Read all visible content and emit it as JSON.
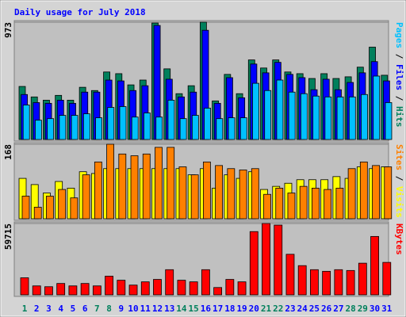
{
  "title": "Daily usage for July 2018",
  "categories": [
    "1",
    "2",
    "3",
    "4",
    "5",
    "6",
    "7",
    "8",
    "9",
    "10",
    "11",
    "12",
    "13",
    "14",
    "15",
    "16",
    "17",
    "18",
    "19",
    "20",
    "21",
    "22",
    "23",
    "24",
    "25",
    "26",
    "27",
    "28",
    "29",
    "30",
    "31"
  ],
  "category_colors": [
    "#00805c",
    "#0000ff",
    "#0000ff",
    "#0000ff",
    "#0000ff",
    "#0000ff",
    "#00805c",
    "#00805c",
    "#0000ff",
    "#0000ff",
    "#0000ff",
    "#0000ff",
    "#0000ff",
    "#00805c",
    "#00805c",
    "#0000ff",
    "#0000ff",
    "#0000ff",
    "#0000ff",
    "#0000ff",
    "#00805c",
    "#00805c",
    "#0000ff",
    "#0000ff",
    "#0000ff",
    "#0000ff",
    "#0000ff",
    "#00805c",
    "#00805c",
    "#0000ff",
    "#0000ff"
  ],
  "legend_separator": " / ",
  "chart_data": [
    {
      "type": "bar",
      "ylim": [
        0,
        973
      ],
      "yticks": [
        973
      ],
      "series": [
        {
          "name": "Hits",
          "color": "#00805c",
          "values": [
            440,
            353,
            326,
            366,
            326,
            433,
            406,
            560,
            546,
            453,
            493,
            966,
            586,
            380,
            446,
            973,
            320,
            540,
            380,
            660,
            593,
            660,
            560,
            546,
            506,
            546,
            506,
            520,
            600,
            766,
            533
          ]
        },
        {
          "name": "Files",
          "color": "#0000ff",
          "values": [
            373,
            306,
            300,
            326,
            300,
            393,
            393,
            493,
            486,
            406,
            446,
            946,
            500,
            353,
            393,
            906,
            300,
            513,
            346,
            626,
            553,
            640,
            540,
            513,
            413,
            500,
            413,
            473,
            553,
            646,
            486
          ]
        },
        {
          "name": "Pages",
          "color": "#00c0ff",
          "values": [
            286,
            160,
            173,
            200,
            200,
            213,
            180,
            266,
            273,
            186,
            220,
            186,
            326,
            173,
            200,
            260,
            173,
            180,
            180,
            466,
            406,
            493,
            393,
            380,
            360,
            353,
            353,
            353,
            373,
            526,
            306
          ]
        }
      ]
    },
    {
      "type": "bar",
      "ylim": [
        0,
        168
      ],
      "yticks": [
        168
      ],
      "series": [
        {
          "name": "Visits",
          "color": "#ffff00",
          "values": [
            91,
            77,
            58,
            84,
            69,
            106,
            102,
            113,
            113,
            113,
            113,
            113,
            113,
            113,
            99,
            113,
            69,
            99,
            91,
            106,
            66,
            73,
            80,
            88,
            88,
            88,
            95,
            91,
            117,
            113,
            117
          ]
        },
        {
          "name": "Sites",
          "color": "#ff8000",
          "values": [
            51,
            26,
            51,
            66,
            47,
            99,
            128,
            168,
            146,
            142,
            146,
            161,
            161,
            117,
            99,
            128,
            120,
            113,
            110,
            113,
            55,
            69,
            58,
            73,
            69,
            66,
            69,
            113,
            128,
            120,
            117
          ]
        }
      ]
    },
    {
      "type": "bar",
      "ylim": [
        0,
        59715
      ],
      "yticks": [
        59715
      ],
      "series": [
        {
          "name": "KBytes",
          "color": "#ff0000",
          "values": [
            14250,
            7465,
            6786,
            9500,
            7465,
            9500,
            7465,
            15608,
            12215,
            8143,
            10858,
            12893,
            21037,
            12215,
            10858,
            21037,
            6107,
            12893,
            10858,
            52931,
            59715,
            58360,
            33930,
            24430,
            21037,
            19680,
            21037,
            20358,
            26465,
            48860,
            27144
          ]
        }
      ]
    }
  ]
}
